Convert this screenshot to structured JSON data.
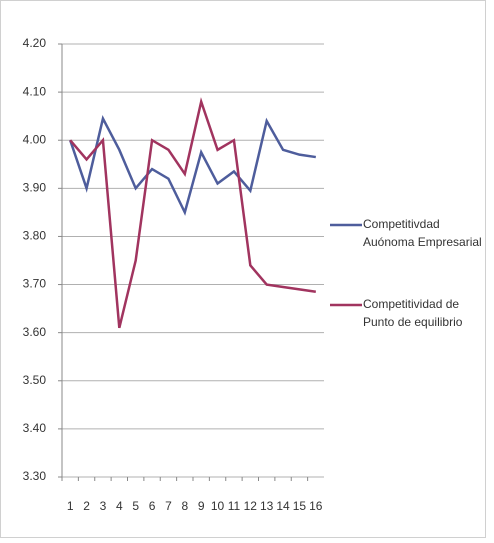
{
  "chart_data": {
    "type": "line",
    "categories": [
      "1",
      "2",
      "3",
      "4",
      "5",
      "6",
      "7",
      "8",
      "9",
      "10",
      "11",
      "12",
      "13",
      "14",
      "15",
      "16"
    ],
    "series": [
      {
        "name": "Competitivdad Auónoma Empresarial",
        "color": "#4e5d9c",
        "values": [
          4.0,
          3.9,
          4.045,
          3.98,
          3.9,
          3.94,
          3.92,
          3.85,
          3.975,
          3.91,
          3.935,
          3.895,
          4.04,
          3.98,
          3.97,
          3.965
        ]
      },
      {
        "name": "Competitividad de Punto de equilibrio",
        "color": "#a1345f",
        "values": [
          4.0,
          3.96,
          4.0,
          3.61,
          3.75,
          4.0,
          3.98,
          3.93,
          4.08,
          3.98,
          4.0,
          3.74,
          3.7,
          3.695,
          3.69,
          3.685
        ]
      }
    ],
    "ylim": [
      3.3,
      4.2
    ],
    "yticks": [
      {
        "value": 3.3,
        "label": "3.30"
      },
      {
        "value": 3.4,
        "label": "3.40"
      },
      {
        "value": 3.5,
        "label": "3.50"
      },
      {
        "value": 3.6,
        "label": "3.60"
      },
      {
        "value": 3.7,
        "label": "3.70"
      },
      {
        "value": 3.8,
        "label": "3.80"
      },
      {
        "value": 3.9,
        "label": "3.90"
      },
      {
        "value": 4.0,
        "label": "4.00"
      },
      {
        "value": 4.1,
        "label": "4.10"
      },
      {
        "value": 4.2,
        "label": "4.20"
      }
    ],
    "grid": true,
    "legend": "right"
  }
}
